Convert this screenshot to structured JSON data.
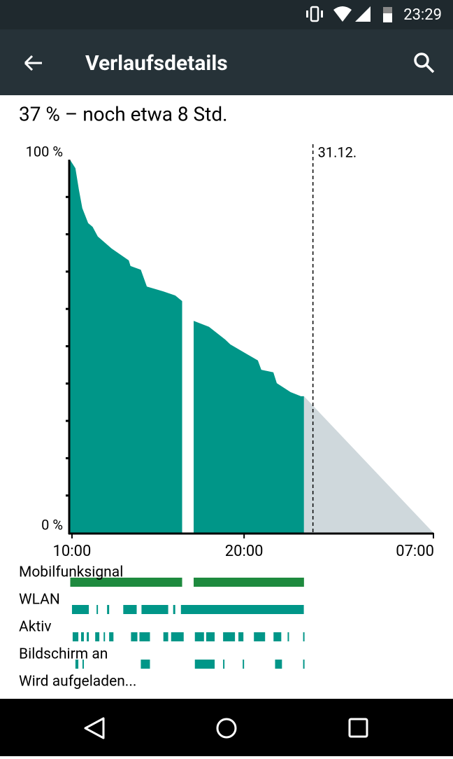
{
  "status_bar": {
    "time": "23:29"
  },
  "toolbar": {
    "title": "Verlaufsdetails"
  },
  "summary": "37 % – noch etwa 8 Std.",
  "chart_data": {
    "type": "area",
    "xlim": [
      9.88,
      31
    ],
    "ylim": [
      0,
      100
    ],
    "xticks": [
      {
        "value": 10,
        "label": "10:00"
      },
      {
        "value": 20,
        "label": "20:00"
      },
      {
        "value": 31,
        "label": "07:00"
      }
    ],
    "yticks": [
      {
        "value": 0,
        "label": "0 %"
      },
      {
        "value": 100,
        "label": "100 %"
      }
    ],
    "minor_yticks": [
      10,
      20,
      30,
      40,
      50,
      60,
      70,
      80,
      90
    ],
    "day_marker": {
      "x": 24,
      "label": "31.12."
    },
    "series": [
      {
        "color": "#009688",
        "x": [
          9.88,
          10.2,
          10.4,
          10.6,
          10.94,
          11.2,
          11.5,
          12.3,
          13.3,
          13.4,
          14.0,
          14.35,
          15.3,
          16.0,
          16.4,
          16.7,
          17.07,
          17.96,
          18.9,
          19.2,
          20.2,
          20.8,
          21.0,
          21.7,
          21.9,
          22.7,
          23.3,
          23.48
        ],
        "values": [
          100,
          97.7,
          92,
          87,
          83,
          82,
          79.4,
          76.2,
          73,
          71.5,
          70.5,
          66,
          64.7,
          63.6,
          62.1,
          null,
          56.8,
          55.2,
          51.8,
          50.5,
          47.8,
          46.2,
          43.7,
          43,
          40.1,
          37.7,
          36.6,
          36.6
        ]
      },
      {
        "color": "#cfd8dc",
        "x": [
          23.48,
          31
        ],
        "values": [
          36.6,
          0
        ]
      }
    ],
    "tracks": [
      {
        "label": "Mobilfunksignal",
        "color": "#1e8a3e",
        "segments": [
          [
            9.9,
            16.4
          ],
          [
            17.07,
            23.48
          ]
        ]
      },
      {
        "label": "WLAN",
        "color": "#009688",
        "segments": [
          [
            10.0,
            10.98
          ],
          [
            11.43,
            11.51
          ],
          [
            12.04,
            12.16
          ],
          [
            12.98,
            13.76
          ],
          [
            14.04,
            15.59
          ],
          [
            15.88,
            16.0
          ],
          [
            16.33,
            23.47
          ]
        ]
      },
      {
        "label": "Aktiv",
        "color": "#009688",
        "segments": [
          [
            10.04,
            10.37
          ],
          [
            10.53,
            10.69
          ],
          [
            10.86,
            10.98
          ],
          [
            11.35,
            11.59
          ],
          [
            11.84,
            11.92
          ],
          [
            12.16,
            12.41
          ],
          [
            13.43,
            13.8
          ],
          [
            13.92,
            14.53
          ],
          [
            15.31,
            15.59
          ],
          [
            15.76,
            16.49
          ],
          [
            17.14,
            17.67
          ],
          [
            17.8,
            18.29
          ],
          [
            18.78,
            19.47
          ],
          [
            19.67,
            19.96
          ],
          [
            20.57,
            21.22
          ],
          [
            21.71,
            22.16
          ],
          [
            22.53,
            22.61
          ],
          [
            23.43,
            23.51
          ]
        ]
      },
      {
        "label": "Bildschirm an",
        "color": "#009688",
        "segments": [
          [
            10.2,
            10.37
          ],
          [
            10.61,
            10.69
          ],
          [
            14.0,
            14.53
          ],
          [
            17.14,
            18.29
          ],
          [
            18.78,
            18.86
          ],
          [
            19.92,
            20.0
          ],
          [
            21.8,
            22.2
          ],
          [
            23.43,
            23.51
          ]
        ]
      },
      {
        "label": "Wird aufgeladen...",
        "color": "#009688",
        "segments": []
      }
    ]
  }
}
